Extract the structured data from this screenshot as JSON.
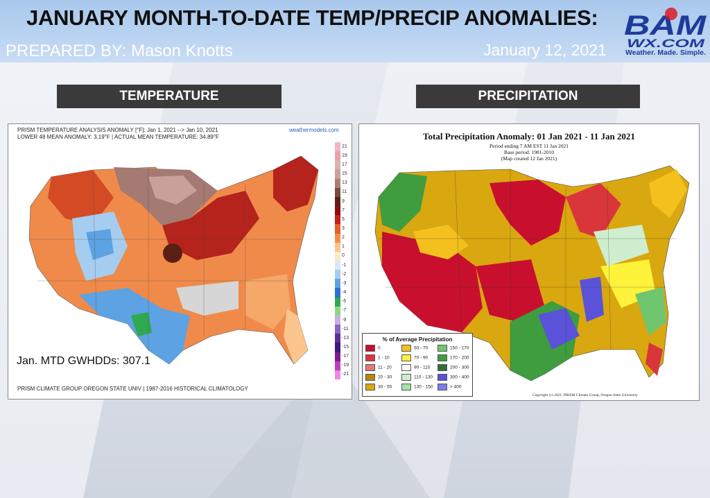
{
  "header": {
    "title": "JANUARY MONTH-TO-DATE TEMP/PRECIP ANOMALIES:",
    "prepared_by": "PREPARED BY: Mason Knotts",
    "date": "January 12, 2021",
    "logo": {
      "line1": "BAM",
      "line2": "WX.COM",
      "tagline": "Weather. Made. Simple.",
      "color_primary": "#1f3a9a",
      "color_accent": "#e01b24"
    }
  },
  "temperature": {
    "section_label": "TEMPERATURE",
    "map_title_line1": "PRISM TEMPERATURE ANALYSIS ANOMALY [°F]: Jan 1, 2021 --> Jan 10, 2021",
    "map_title_line2": "LOWER 48 MEAN ANOMALY: 3.19°F | ACTUAL MEAN TEMPERATURE: 34.89°F",
    "source_tag": "weathermodels.com",
    "annotation": "Jan. MTD GWHDDs: 307.1",
    "footer": "PRISM CLIMATE GROUP OREGON STATE UNIV | 1987-2016 HISTORICAL CLIMATOLOGY",
    "scale": [
      {
        "v": "21",
        "c": "#f2b6c6"
      },
      {
        "v": "19",
        "c": "#e8a3a8"
      },
      {
        "v": "17",
        "c": "#d9b4ae"
      },
      {
        "v": "15",
        "c": "#c9a19a"
      },
      {
        "v": "13",
        "c": "#a97e74"
      },
      {
        "v": "11",
        "c": "#7a4b3d"
      },
      {
        "v": "9",
        "c": "#5c1f15"
      },
      {
        "v": "7",
        "c": "#8b0d0d"
      },
      {
        "v": "5",
        "c": "#c4201c"
      },
      {
        "v": "3",
        "c": "#ea5b2a"
      },
      {
        "v": "2",
        "c": "#f58d4a"
      },
      {
        "v": "1",
        "c": "#fbc58e"
      },
      {
        "v": "0",
        "c": "#f8e9c8"
      },
      {
        "v": "-1",
        "c": "#d6e9f5"
      },
      {
        "v": "-2",
        "c": "#a5cdef"
      },
      {
        "v": "-3",
        "c": "#5da2e2"
      },
      {
        "v": "-4",
        "c": "#2d6fd1"
      },
      {
        "v": "-5",
        "c": "#2fa84f"
      },
      {
        "v": "-7",
        "c": "#8fd48a"
      },
      {
        "v": "-9",
        "c": "#c9b0e0"
      },
      {
        "v": "-11",
        "c": "#8a64c4"
      },
      {
        "v": "-13",
        "c": "#5b2e9a"
      },
      {
        "v": "-15",
        "c": "#3d1b7a"
      },
      {
        "v": "-17",
        "c": "#7a1e8e"
      },
      {
        "v": "-19",
        "c": "#c23cc0"
      },
      {
        "v": "-21",
        "c": "#ee86e6"
      }
    ]
  },
  "precipitation": {
    "section_label": "PRECIPITATION",
    "map_title": "Total Precipitation Anomaly: 01 Jan 2021 - 11 Jan 2021",
    "sub1": "Period ending 7 AM EST 11 Jan 2021",
    "sub2": "Base period: 1981-2010",
    "sub3": "(Map created 12 Jan 2021)",
    "copyright": "Copyright (c) 2021, PRISM Climate Group, Oregon State University",
    "legend_title": "% of Average Precipitation",
    "legend": [
      {
        "label": "0",
        "c": "#c8102e"
      },
      {
        "label": "1 - 10",
        "c": "#d9363c"
      },
      {
        "label": "11 - 20",
        "c": "#e07a7a"
      },
      {
        "label": "20 - 30",
        "c": "#b8860b"
      },
      {
        "label": "30 - 50",
        "c": "#d9a70f"
      },
      {
        "label": "50 - 70",
        "c": "#f3c01d"
      },
      {
        "label": "70 - 90",
        "c": "#fff23a"
      },
      {
        "label": "90 - 110",
        "c": "#ffffff"
      },
      {
        "label": "110 - 130",
        "c": "#cfeecf"
      },
      {
        "label": "130 - 150",
        "c": "#a6e1a6"
      },
      {
        "label": "150 - 170",
        "c": "#6fc66f"
      },
      {
        "label": "170 - 200",
        "c": "#3f9c3f"
      },
      {
        "label": "200 - 300",
        "c": "#2f6f3a"
      },
      {
        "label": "300 - 400",
        "c": "#5a52d9"
      },
      {
        "label": "> 400",
        "c": "#7b7bf0"
      }
    ]
  }
}
